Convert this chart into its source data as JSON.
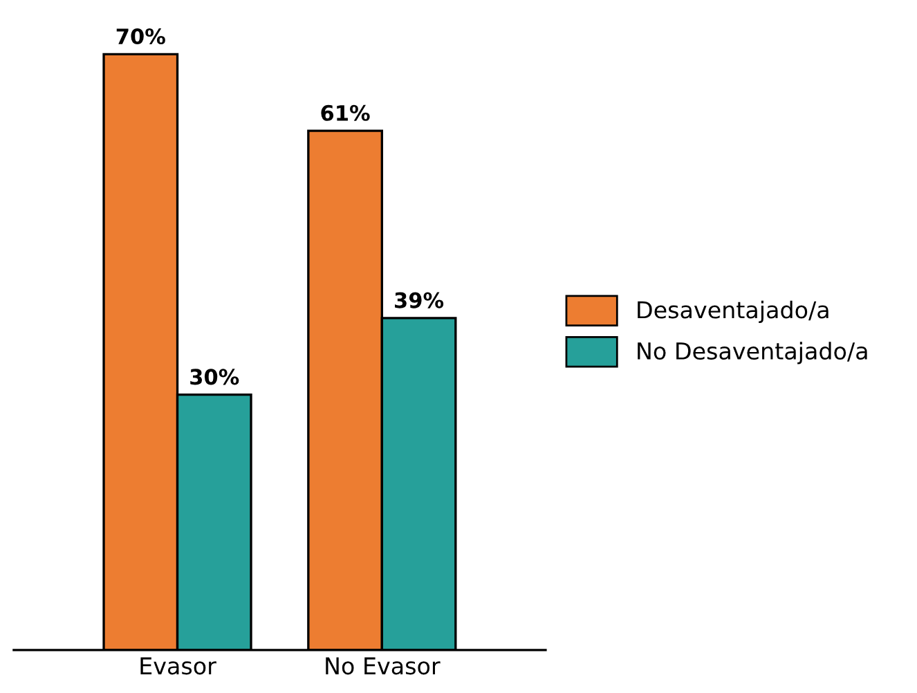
{
  "chart_data": {
    "type": "bar",
    "relative": false,
    "categories": [
      "Evasor",
      "No Evasor"
    ],
    "series": [
      {
        "name": "Desaventajado/a",
        "color": "#ed7d31",
        "values": [
          70,
          61
        ],
        "value_labels": [
          "70%",
          "61%"
        ]
      },
      {
        "name": "No Desaventajado/a",
        "color": "#26a09a",
        "values": [
          30,
          39
        ],
        "value_labels": [
          "30%",
          "39%"
        ]
      }
    ],
    "legend": "right",
    "grid": false
  }
}
